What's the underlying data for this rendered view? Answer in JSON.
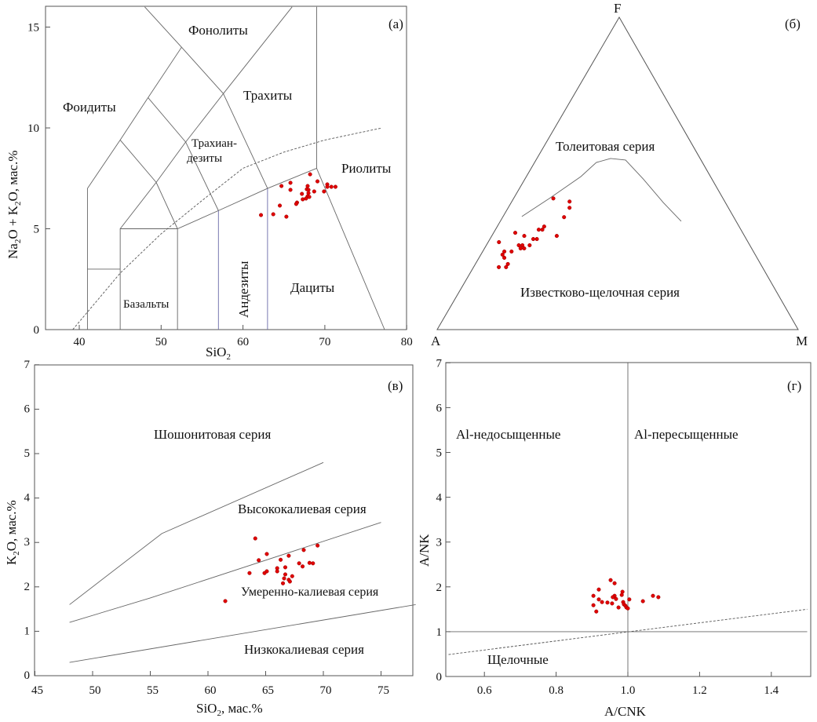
{
  "colors": {
    "points": "#e00000",
    "lines": "#666666"
  },
  "chart_data": [
    {
      "id": "a",
      "type": "scatter",
      "panel_label": "(а)",
      "xlabel": {
        "main": "SiO",
        "sub": "2"
      },
      "ylabel": {
        "p1": "Na",
        "s1": "2",
        "p2": "O + K",
        "s2": "2",
        "p3": "O, мас.%"
      },
      "xlim": [
        36,
        80
      ],
      "ylim": [
        0,
        16
      ],
      "xticks": [
        40,
        50,
        60,
        70,
        80
      ],
      "yticks": [
        0,
        5,
        10,
        15
      ],
      "fields": [
        "Фонолиты",
        "Фоидиты",
        "Трахиты",
        "Трахиан-",
        "дезиты",
        "Риолиты",
        "Андезиты",
        "Дациты",
        "Базальты"
      ],
      "points": [
        [
          68.2,
          7.7
        ],
        [
          69.1,
          7.35
        ],
        [
          70.3,
          7.2
        ],
        [
          70.3,
          7.08
        ],
        [
          70.8,
          7.08
        ],
        [
          71.3,
          7.08
        ],
        [
          65.8,
          7.28
        ],
        [
          64.7,
          7.12
        ],
        [
          65.8,
          6.93
        ],
        [
          67.9,
          7.12
        ],
        [
          67.8,
          6.96
        ],
        [
          68.0,
          6.93
        ],
        [
          68.7,
          6.85
        ],
        [
          69.9,
          6.85
        ],
        [
          67.2,
          6.73
        ],
        [
          68.0,
          6.77
        ],
        [
          67.9,
          6.61
        ],
        [
          68.1,
          6.58
        ],
        [
          67.7,
          6.5
        ],
        [
          67.3,
          6.46
        ],
        [
          66.6,
          6.3
        ],
        [
          66.5,
          6.23
        ],
        [
          64.5,
          6.15
        ],
        [
          63.7,
          5.72
        ],
        [
          65.3,
          5.6
        ],
        [
          62.2,
          5.68
        ]
      ]
    },
    {
      "id": "b",
      "type": "scatter",
      "subtype": "ternary AFM",
      "panel_label": "(б)",
      "vertices": {
        "top": "F",
        "left": "A",
        "right": "M"
      },
      "fields": [
        "Толеитовая серия",
        "Известково-щелочная серия"
      ],
      "points_AFM": [
        [
          0.47,
          0.42,
          0.11
        ],
        [
          0.43,
          0.41,
          0.16
        ],
        [
          0.44,
          0.39,
          0.17
        ],
        [
          0.47,
          0.36,
          0.17
        ],
        [
          0.56,
          0.32,
          0.12
        ],
        [
          0.55,
          0.32,
          0.13
        ],
        [
          0.54,
          0.33,
          0.13
        ],
        [
          0.52,
          0.3,
          0.18
        ],
        [
          0.63,
          0.31,
          0.06
        ],
        [
          0.61,
          0.3,
          0.09
        ],
        [
          0.59,
          0.29,
          0.12
        ],
        [
          0.58,
          0.29,
          0.13
        ],
        [
          0.69,
          0.28,
          0.03
        ],
        [
          0.61,
          0.27,
          0.12
        ],
        [
          0.63,
          0.27,
          0.1
        ],
        [
          0.64,
          0.27,
          0.09
        ],
        [
          0.63,
          0.26,
          0.11
        ],
        [
          0.64,
          0.26,
          0.1
        ],
        [
          0.67,
          0.25,
          0.08
        ],
        [
          0.69,
          0.25,
          0.06
        ],
        [
          0.7,
          0.24,
          0.06
        ],
        [
          0.7,
          0.23,
          0.07
        ],
        [
          0.7,
          0.21,
          0.09
        ],
        [
          0.71,
          0.2,
          0.09
        ],
        [
          0.73,
          0.2,
          0.07
        ]
      ]
    },
    {
      "id": "c",
      "type": "scatter",
      "panel_label": "(в)",
      "xlabel": {
        "main": "SiO",
        "sub": "2",
        "rest": ", мас.%"
      },
      "ylabel": {
        "main": "K",
        "sub": "2",
        "rest": "O, мас.%"
      },
      "xlim": [
        45,
        78
      ],
      "ylim": [
        0,
        7
      ],
      "xticks": [
        45,
        50,
        55,
        60,
        65,
        70,
        75
      ],
      "yticks": [
        0,
        1,
        2,
        3,
        4,
        5,
        6,
        7
      ],
      "fields": [
        "Шошонитовая серия",
        "Высококалиевая серия",
        "Умеренно-калиевая серия",
        "Низкокалиевая серия"
      ],
      "points": [
        [
          64.1,
          3.09
        ],
        [
          65.1,
          2.74
        ],
        [
          64.4,
          2.6
        ],
        [
          67.0,
          2.7
        ],
        [
          68.3,
          2.83
        ],
        [
          69.5,
          2.93
        ],
        [
          66.3,
          2.61
        ],
        [
          67.9,
          2.53
        ],
        [
          68.8,
          2.54
        ],
        [
          69.1,
          2.53
        ],
        [
          68.2,
          2.46
        ],
        [
          66.7,
          2.44
        ],
        [
          66.0,
          2.42
        ],
        [
          66.0,
          2.35
        ],
        [
          65.1,
          2.35
        ],
        [
          64.9,
          2.31
        ],
        [
          63.6,
          2.31
        ],
        [
          66.7,
          2.28
        ],
        [
          67.3,
          2.24
        ],
        [
          66.6,
          2.19
        ],
        [
          67.0,
          2.16
        ],
        [
          67.1,
          2.12
        ],
        [
          66.5,
          2.08
        ],
        [
          61.5,
          1.68
        ]
      ]
    },
    {
      "id": "d",
      "type": "scatter",
      "panel_label": "(г)",
      "xlabel": "A/CNK",
      "ylabel": "A/NK",
      "xlim": [
        0.5,
        1.5
      ],
      "ylim": [
        0,
        7
      ],
      "xticks": [
        "0.6",
        "0.8",
        "1.0",
        "1.2",
        "1.4"
      ],
      "yticks": [
        0,
        1,
        2,
        3,
        4,
        5,
        6,
        7
      ],
      "fields": [
        "Al-недосыщенные",
        "Al-пересыщенные",
        "Щелочные"
      ],
      "points": [
        [
          0.952,
          2.15
        ],
        [
          0.963,
          2.08
        ],
        [
          0.919,
          1.94
        ],
        [
          0.904,
          1.8
        ],
        [
          0.985,
          1.89
        ],
        [
          0.983,
          1.82
        ],
        [
          0.963,
          1.8
        ],
        [
          0.958,
          1.77
        ],
        [
          0.967,
          1.73
        ],
        [
          0.919,
          1.72
        ],
        [
          0.928,
          1.66
        ],
        [
          0.943,
          1.65
        ],
        [
          0.956,
          1.63
        ],
        [
          0.987,
          1.66
        ],
        [
          0.989,
          1.61
        ],
        [
          1.004,
          1.72
        ],
        [
          0.904,
          1.59
        ],
        [
          0.974,
          1.54
        ],
        [
          0.993,
          1.58
        ],
        [
          0.996,
          1.54
        ],
        [
          1.0,
          1.52
        ],
        [
          0.912,
          1.45
        ],
        [
          1.042,
          1.68
        ],
        [
          1.07,
          1.8
        ],
        [
          1.085,
          1.77
        ]
      ]
    }
  ]
}
